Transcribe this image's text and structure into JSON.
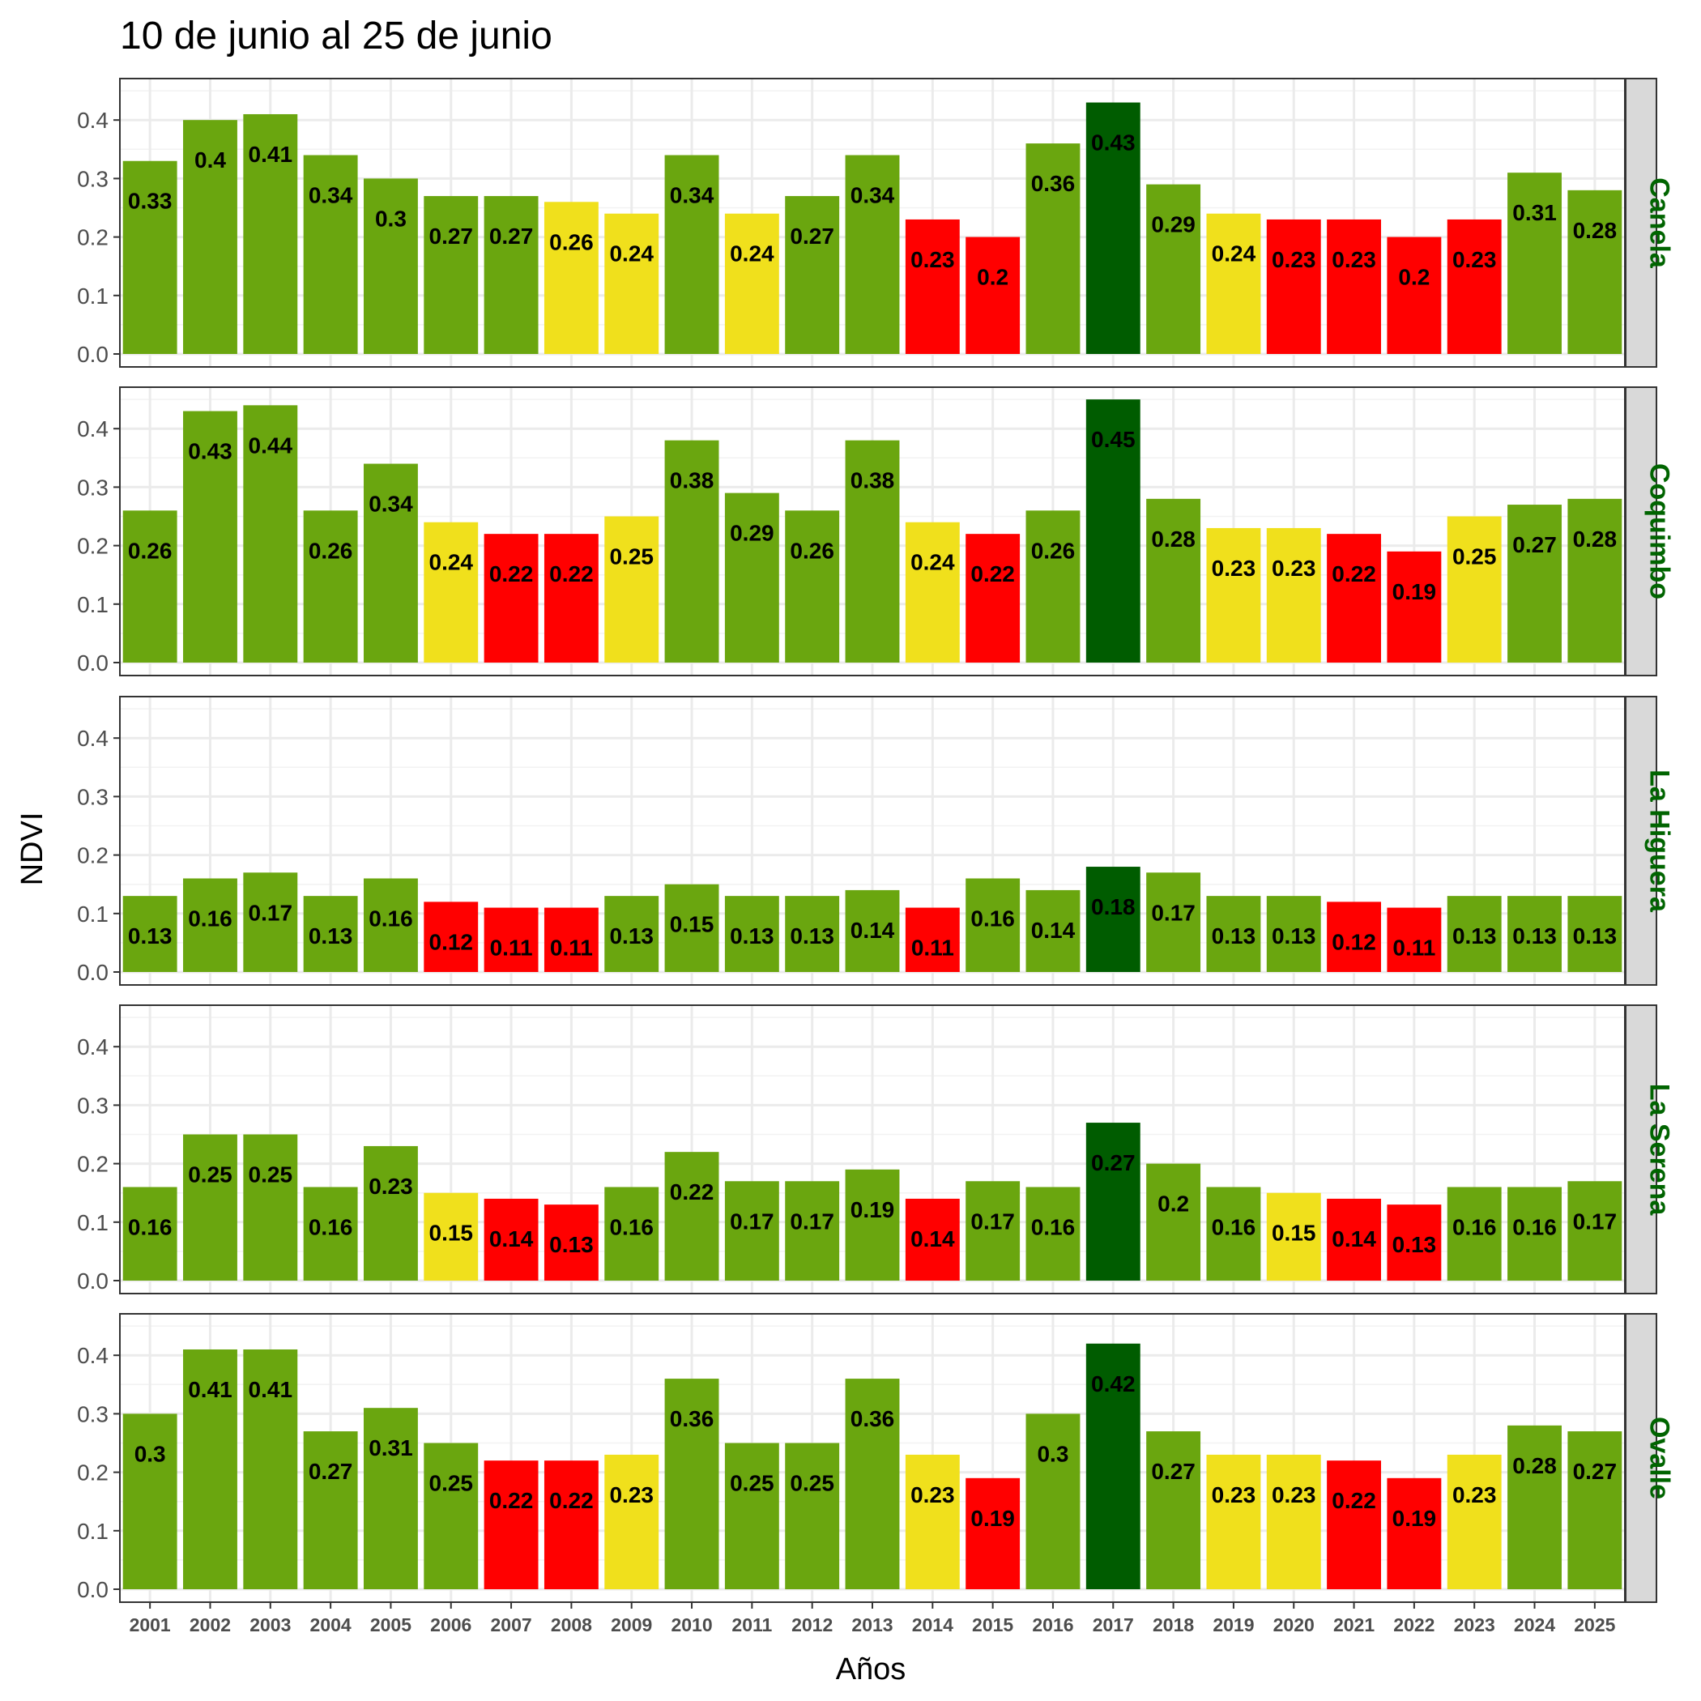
{
  "chart_data": {
    "type": "bar",
    "title": "10 de junio al 25 de junio",
    "xlabel": "Años",
    "ylabel": "NDVI",
    "ylim": [
      0,
      0.47
    ],
    "yticks": [
      "0.0",
      "0.1",
      "0.2",
      "0.3",
      "0.4"
    ],
    "grid": true,
    "categories": [
      "2001",
      "2002",
      "2003",
      "2004",
      "2005",
      "2006",
      "2007",
      "2008",
      "2009",
      "2010",
      "2011",
      "2012",
      "2013",
      "2014",
      "2015",
      "2016",
      "2017",
      "2018",
      "2019",
      "2020",
      "2021",
      "2022",
      "2023",
      "2024",
      "2025"
    ],
    "colors": {
      "green": "#6aa60f",
      "dark_green": "#005c00",
      "yellow": "#f0e01c",
      "red": "#ff0000"
    },
    "panels": [
      {
        "name": "Canela",
        "values": [
          0.33,
          0.4,
          0.41,
          0.34,
          0.3,
          0.27,
          0.27,
          0.26,
          0.24,
          0.34,
          0.24,
          0.27,
          0.34,
          0.23,
          0.2,
          0.36,
          0.43,
          0.29,
          0.24,
          0.23,
          0.23,
          0.2,
          0.23,
          0.31,
          0.28
        ],
        "labels": [
          "0.33",
          "0.4",
          "0.41",
          "0.34",
          "0.3",
          "0.27",
          "0.27",
          "0.26",
          "0.24",
          "0.34",
          "0.24",
          "0.27",
          "0.34",
          "0.23",
          "0.2",
          "0.36",
          "0.43",
          "0.29",
          "0.24",
          "0.23",
          "0.23",
          "0.2",
          "0.23",
          "0.31",
          "0.28"
        ],
        "bar_colors": [
          "green",
          "green",
          "green",
          "green",
          "green",
          "green",
          "green",
          "yellow",
          "yellow",
          "green",
          "yellow",
          "green",
          "green",
          "red",
          "red",
          "green",
          "dark_green",
          "green",
          "yellow",
          "red",
          "red",
          "red",
          "red",
          "green",
          "green"
        ]
      },
      {
        "name": "Coquimbo",
        "values": [
          0.26,
          0.43,
          0.44,
          0.26,
          0.34,
          0.24,
          0.22,
          0.22,
          0.25,
          0.38,
          0.29,
          0.26,
          0.38,
          0.24,
          0.22,
          0.26,
          0.45,
          0.28,
          0.23,
          0.23,
          0.22,
          0.19,
          0.25,
          0.27,
          0.28
        ],
        "labels": [
          "0.26",
          "0.43",
          "0.44",
          "0.26",
          "0.34",
          "0.24",
          "0.22",
          "0.22",
          "0.25",
          "0.38",
          "0.29",
          "0.26",
          "0.38",
          "0.24",
          "0.22",
          "0.26",
          "0.45",
          "0.28",
          "0.23",
          "0.23",
          "0.22",
          "0.19",
          "0.25",
          "0.27",
          "0.28"
        ],
        "bar_colors": [
          "green",
          "green",
          "green",
          "green",
          "green",
          "yellow",
          "red",
          "red",
          "yellow",
          "green",
          "green",
          "green",
          "green",
          "yellow",
          "red",
          "green",
          "dark_green",
          "green",
          "yellow",
          "yellow",
          "red",
          "red",
          "yellow",
          "green",
          "green"
        ]
      },
      {
        "name": "La Higuera",
        "values": [
          0.13,
          0.16,
          0.17,
          0.13,
          0.16,
          0.12,
          0.11,
          0.11,
          0.13,
          0.15,
          0.13,
          0.13,
          0.14,
          0.11,
          0.16,
          0.14,
          0.18,
          0.17,
          0.13,
          0.13,
          0.12,
          0.11,
          0.13,
          0.13,
          0.13
        ],
        "labels": [
          "0.13",
          "0.16",
          "0.17",
          "0.13",
          "0.16",
          "0.12",
          "0.11",
          "0.11",
          "0.13",
          "0.15",
          "0.13",
          "0.13",
          "0.14",
          "0.11",
          "0.16",
          "0.14",
          "0.18",
          "0.17",
          "0.13",
          "0.13",
          "0.12",
          "0.11",
          "0.13",
          "0.13",
          "0.13"
        ],
        "bar_colors": [
          "green",
          "green",
          "green",
          "green",
          "green",
          "red",
          "red",
          "red",
          "green",
          "green",
          "green",
          "green",
          "green",
          "red",
          "green",
          "green",
          "dark_green",
          "green",
          "green",
          "green",
          "red",
          "red",
          "green",
          "green",
          "green"
        ]
      },
      {
        "name": "La Serena",
        "values": [
          0.16,
          0.25,
          0.25,
          0.16,
          0.23,
          0.15,
          0.14,
          0.13,
          0.16,
          0.22,
          0.17,
          0.17,
          0.19,
          0.14,
          0.17,
          0.16,
          0.27,
          0.2,
          0.16,
          0.15,
          0.14,
          0.13,
          0.16,
          0.16,
          0.17
        ],
        "labels": [
          "0.16",
          "0.25",
          "0.25",
          "0.16",
          "0.23",
          "0.15",
          "0.14",
          "0.13",
          "0.16",
          "0.22",
          "0.17",
          "0.17",
          "0.19",
          "0.14",
          "0.17",
          "0.16",
          "0.27",
          "0.2",
          "0.16",
          "0.15",
          "0.14",
          "0.13",
          "0.16",
          "0.16",
          "0.17"
        ],
        "bar_colors": [
          "green",
          "green",
          "green",
          "green",
          "green",
          "yellow",
          "red",
          "red",
          "green",
          "green",
          "green",
          "green",
          "green",
          "red",
          "green",
          "green",
          "dark_green",
          "green",
          "green",
          "yellow",
          "red",
          "red",
          "green",
          "green",
          "green"
        ]
      },
      {
        "name": "Ovalle",
        "values": [
          0.3,
          0.41,
          0.41,
          0.27,
          0.31,
          0.25,
          0.22,
          0.22,
          0.23,
          0.36,
          0.25,
          0.25,
          0.36,
          0.23,
          0.19,
          0.3,
          0.42,
          0.27,
          0.23,
          0.23,
          0.22,
          0.19,
          0.23,
          0.28,
          0.27
        ],
        "labels": [
          "0.3",
          "0.41",
          "0.41",
          "0.27",
          "0.31",
          "0.25",
          "0.22",
          "0.22",
          "0.23",
          "0.36",
          "0.25",
          "0.25",
          "0.36",
          "0.23",
          "0.19",
          "0.3",
          "0.42",
          "0.27",
          "0.23",
          "0.23",
          "0.22",
          "0.19",
          "0.23",
          "0.28",
          "0.27"
        ],
        "bar_colors": [
          "green",
          "green",
          "green",
          "green",
          "green",
          "green",
          "red",
          "red",
          "yellow",
          "green",
          "green",
          "green",
          "green",
          "yellow",
          "red",
          "green",
          "dark_green",
          "green",
          "yellow",
          "yellow",
          "red",
          "red",
          "yellow",
          "green",
          "green"
        ]
      }
    ]
  }
}
